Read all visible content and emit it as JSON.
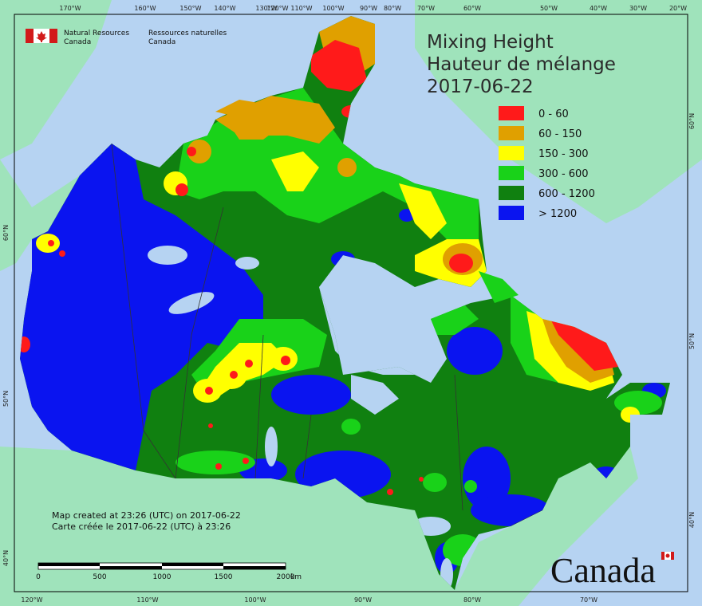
{
  "agency": {
    "en_line1": "Natural Resources",
    "en_line2": "Canada",
    "fr_line1": "Ressources naturelles",
    "fr_line2": "Canada"
  },
  "title": {
    "line1": "Mixing Height",
    "line2": "Hauteur de mélange",
    "date": "2017-06-22"
  },
  "legend": [
    {
      "label": "0 - 60",
      "color": "#ff1a1a"
    },
    {
      "label": "60 - 150",
      "color": "#e0a000"
    },
    {
      "label": "150 - 300",
      "color": "#ffff00"
    },
    {
      "label": "300 - 600",
      "color": "#19d219"
    },
    {
      "label": "600 - 1200",
      "color": "#108010"
    },
    {
      "label": "> 1200",
      "color": "#0a14f0"
    }
  ],
  "credits": {
    "en": "Map created at 23:26 (UTC) on 2017-06-22",
    "fr": "Carte créée le 2017-06-22 (UTC) à 23:26"
  },
  "scalebar": {
    "labels": [
      "0",
      "500",
      "1000",
      "1500",
      "2000"
    ],
    "unit": "km"
  },
  "wordmark": "Canada",
  "graticule": {
    "top": [
      "170°W",
      "160°W",
      "150°W",
      "140°W",
      "130°W",
      "120°W",
      "110°W",
      "100°W",
      "90°W",
      "80°W",
      "70°W",
      "60°W",
      "50°W",
      "40°W",
      "30°W",
      "20°W"
    ],
    "bottom": [
      "120°W",
      "110°W",
      "100°W",
      "90°W",
      "80°W",
      "70°W"
    ],
    "left": [
      "60°N",
      "50°N",
      "40°N"
    ],
    "right": [
      "60°N",
      "50°N",
      "40°N"
    ]
  },
  "colors": {
    "ocean": "#b6d3f2",
    "foreign_land": "#9fe3bb",
    "lakes": "#b6d3f2"
  }
}
